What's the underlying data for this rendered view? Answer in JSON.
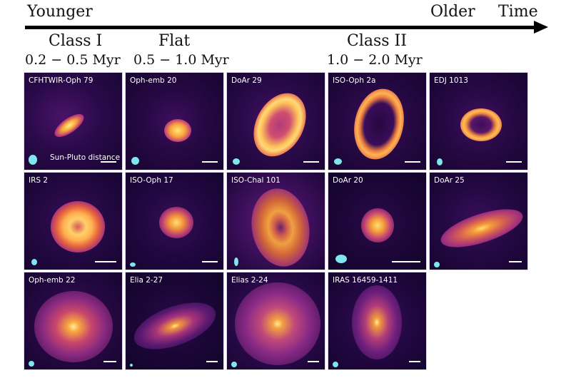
{
  "timeline": {
    "left_label": "Younger",
    "right_label_1": "Older",
    "right_label_2": "Time"
  },
  "classes": [
    {
      "name": "Class I",
      "age": "0.2 − 0.5 Myr"
    },
    {
      "name": "Flat",
      "age": "0.5 − 1.0 Myr"
    },
    {
      "name": "Class II",
      "age": "1.0 − 2.0 Myr"
    }
  ],
  "panels": [
    {
      "name": "CFHTWIR-Oph 79"
    },
    {
      "name": "Oph-emb 20"
    },
    {
      "name": "DoAr 29"
    },
    {
      "name": "ISO-Oph 2a"
    },
    {
      "name": "EDJ 1013"
    },
    {
      "name": "IRS 2"
    },
    {
      "name": "ISO-Oph 17"
    },
    {
      "name": "ISO-Chal 101"
    },
    {
      "name": "DoAr 20"
    },
    {
      "name": "DoAr 25"
    },
    {
      "name": "Oph-emb 22"
    },
    {
      "name": "Elia 2-27"
    },
    {
      "name": "Elias 2-24"
    },
    {
      "name": "IRAS 16459-1411"
    }
  ],
  "scale_note": "Sun-Pluto distance",
  "colors": {
    "background_dark": "#1a0630",
    "disk_bright": "#ffe97a",
    "disk_mid": "#f59a3a",
    "disk_outer": "#a1307a",
    "beam": "#7fe6ee"
  }
}
